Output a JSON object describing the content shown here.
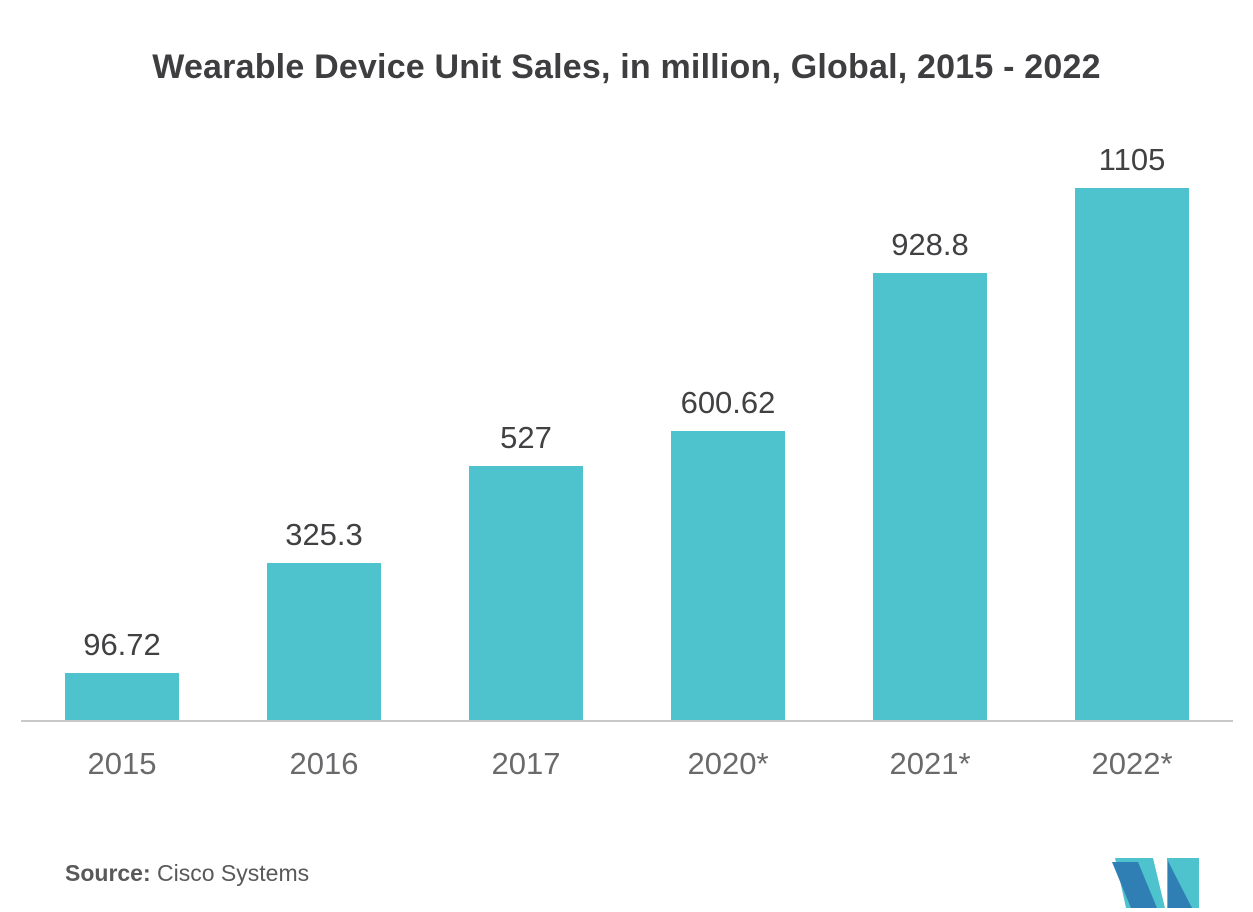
{
  "title": "Wearable Device Unit Sales, in million, Global, 2015 - 2022",
  "source": {
    "label": "Source:",
    "text": " Cisco Systems"
  },
  "logo": {
    "name": "mordor-intelligence-logo",
    "teal": "#4EC3CD",
    "blue": "#2F7FB5"
  },
  "chart_data": {
    "type": "bar",
    "title": "Wearable Device Unit Sales, in million, Global, 2015 - 2022",
    "categories": [
      "2015",
      "2016",
      "2017",
      "2020*",
      "2021*",
      "2022*"
    ],
    "values": [
      96.72,
      325.3,
      527,
      600.62,
      928.8,
      1105
    ],
    "value_labels": [
      "96.72",
      "325.3",
      "527",
      "600.62",
      "928.8",
      "1105"
    ],
    "bar_color": "#4EC3CD",
    "axis_line_color": "#c9c9c9",
    "ylim": [
      0,
      1105
    ],
    "grid": "off",
    "legend": "none",
    "xlabel": "",
    "ylabel": ""
  }
}
